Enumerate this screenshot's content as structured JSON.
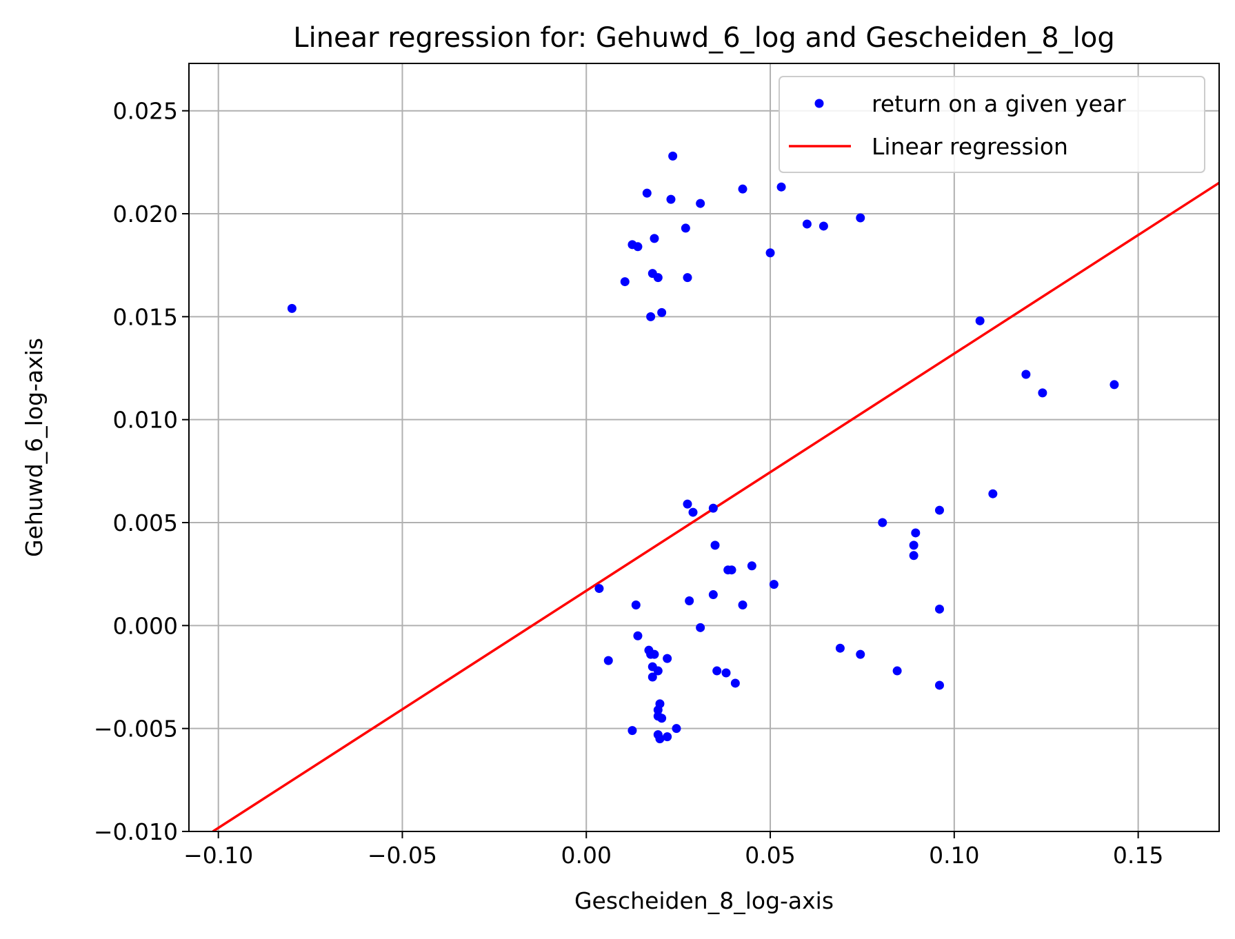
{
  "chart_data": {
    "type": "scatter",
    "title": "Linear regression for: Gehuwd_6_log and Gescheiden_8_log",
    "xlabel": "Gescheiden_8_log-axis",
    "ylabel": "Gehuwd_6_log-axis",
    "xlim": [
      -0.108,
      0.172
    ],
    "ylim": [
      -0.01,
      0.0273
    ],
    "xticks": [
      -0.1,
      -0.05,
      0.0,
      0.05,
      0.1,
      0.15
    ],
    "xtick_labels": [
      "−0.10",
      "−0.05",
      "0.00",
      "0.05",
      "0.10",
      "0.15"
    ],
    "yticks": [
      -0.01,
      -0.005,
      0.0,
      0.005,
      0.01,
      0.015,
      0.02,
      0.025
    ],
    "ytick_labels": [
      "−0.010",
      "−0.005",
      "0.000",
      "0.005",
      "0.010",
      "0.015",
      "0.020",
      "0.025"
    ],
    "grid": true,
    "legend_position": "top-right",
    "series": [
      {
        "name": "return on a given year",
        "kind": "scatter",
        "color": "#0000ff",
        "points": [
          [
            -0.08,
            0.0154
          ],
          [
            0.0235,
            0.0228
          ],
          [
            0.0165,
            0.021
          ],
          [
            0.023,
            0.0207
          ],
          [
            0.031,
            0.0205
          ],
          [
            0.0425,
            0.0212
          ],
          [
            0.053,
            0.0213
          ],
          [
            0.027,
            0.0193
          ],
          [
            0.0185,
            0.0188
          ],
          [
            0.0125,
            0.0185
          ],
          [
            0.014,
            0.0184
          ],
          [
            0.06,
            0.0195
          ],
          [
            0.0645,
            0.0194
          ],
          [
            0.0745,
            0.0198
          ],
          [
            0.05,
            0.0181
          ],
          [
            0.018,
            0.0171
          ],
          [
            0.0195,
            0.0169
          ],
          [
            0.0275,
            0.0169
          ],
          [
            0.0105,
            0.0167
          ],
          [
            0.0175,
            0.015
          ],
          [
            0.0205,
            0.0152
          ],
          [
            0.107,
            0.0148
          ],
          [
            0.1195,
            0.0122
          ],
          [
            0.124,
            0.0113
          ],
          [
            0.1435,
            0.0117
          ],
          [
            0.1105,
            0.0064
          ],
          [
            0.096,
            0.0056
          ],
          [
            0.0275,
            0.0059
          ],
          [
            0.029,
            0.0055
          ],
          [
            0.0345,
            0.0057
          ],
          [
            0.0805,
            0.005
          ],
          [
            0.0895,
            0.0045
          ],
          [
            0.089,
            0.0039
          ],
          [
            0.089,
            0.0034
          ],
          [
            0.035,
            0.0039
          ],
          [
            0.0385,
            0.0027
          ],
          [
            0.0395,
            0.0027
          ],
          [
            0.045,
            0.0029
          ],
          [
            0.051,
            0.002
          ],
          [
            0.0035,
            0.0018
          ],
          [
            0.0345,
            0.0015
          ],
          [
            0.028,
            0.0012
          ],
          [
            0.0425,
            0.001
          ],
          [
            0.0135,
            0.001
          ],
          [
            0.096,
            0.0008
          ],
          [
            0.031,
            -0.0001
          ],
          [
            0.014,
            -0.0005
          ],
          [
            0.069,
            -0.0011
          ],
          [
            0.0745,
            -0.0014
          ],
          [
            0.017,
            -0.0012
          ],
          [
            0.0175,
            -0.0014
          ],
          [
            0.0185,
            -0.0014
          ],
          [
            0.022,
            -0.0016
          ],
          [
            0.006,
            -0.0017
          ],
          [
            0.018,
            -0.002
          ],
          [
            0.0195,
            -0.0022
          ],
          [
            0.018,
            -0.0025
          ],
          [
            0.0355,
            -0.0022
          ],
          [
            0.038,
            -0.0023
          ],
          [
            0.0845,
            -0.0022
          ],
          [
            0.0405,
            -0.0028
          ],
          [
            0.096,
            -0.0029
          ],
          [
            0.02,
            -0.0038
          ],
          [
            0.0195,
            -0.0041
          ],
          [
            0.0195,
            -0.0044
          ],
          [
            0.0205,
            -0.0045
          ],
          [
            0.0125,
            -0.0051
          ],
          [
            0.0245,
            -0.005
          ],
          [
            0.0195,
            -0.0053
          ],
          [
            0.022,
            -0.0054
          ],
          [
            0.02,
            -0.0055
          ]
        ]
      },
      {
        "name": "Linear regression",
        "kind": "line",
        "color": "#ff0000",
        "x": [
          -0.1015,
          0.172
        ],
        "y": [
          -0.01,
          0.0215
        ]
      }
    ]
  }
}
